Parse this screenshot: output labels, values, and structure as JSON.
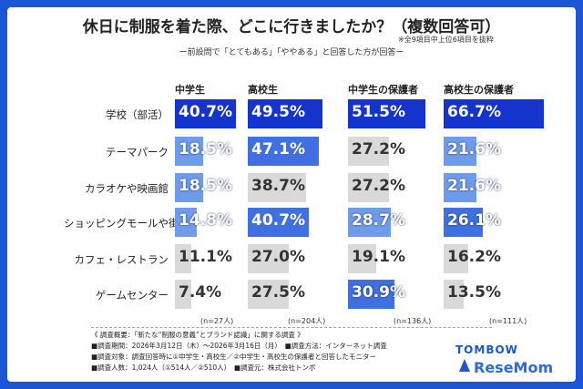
{
  "title": "休日に制服を着た際、どこに行きましたか？（複数回答可）",
  "subtitle": "ー前設問で「とてもある」「ややある」と回答した方が回答ー",
  "note": "※全9項目中上位6項目を抜粋",
  "chart_data": {
    "type": "table",
    "categories": [
      "学校（部活）",
      "テーマパーク",
      "カラオケや映画館",
      "ショッピングモールや街中",
      "カフェ・レストラン",
      "ゲームセンター"
    ],
    "series": [
      {
        "name": "中学生",
        "values": [
          40.7,
          18.5,
          18.5,
          14.8,
          11.1,
          7.4
        ],
        "n": "(n=27人)"
      },
      {
        "name": "高校生",
        "values": [
          49.5,
          47.1,
          38.7,
          40.7,
          27.0,
          27.5
        ],
        "n": "(n=204人)"
      },
      {
        "name": "中学生の保護者",
        "values": [
          51.5,
          27.2,
          27.2,
          28.7,
          19.1,
          30.9
        ],
        "n": "(n=136人)"
      },
      {
        "name": "高校生の保護者",
        "values": [
          66.7,
          21.6,
          21.6,
          26.1,
          16.2,
          13.5
        ],
        "n": "(n=111人)"
      }
    ],
    "labels": [
      [
        "40.7%",
        "49.5%",
        "51.5%",
        "66.7%"
      ],
      [
        "18.5%",
        "47.1%",
        "27.2%",
        "21.6%"
      ],
      [
        "18.5%",
        "38.7%",
        "27.2%",
        "21.6%"
      ],
      [
        "14.8%",
        "40.7%",
        "28.7%",
        "26.1%"
      ],
      [
        "11.1%",
        "27.0%",
        "19.1%",
        "16.2%"
      ],
      [
        "7.4%",
        "27.5%",
        "30.9%",
        "13.5%"
      ]
    ],
    "colors": {
      "dark": "#1434cc",
      "mid": "#3f6fe0",
      "light": "#6f9bea",
      "gray": "#d9d9d9"
    },
    "color_levels": [
      [
        "dark",
        "dark",
        "dark",
        "dark"
      ],
      [
        "light",
        "mid",
        "gray",
        "light"
      ],
      [
        "light",
        "gray",
        "gray",
        "light"
      ],
      [
        "light",
        "mid",
        "light",
        "mid"
      ],
      [
        "gray",
        "gray",
        "gray",
        "gray"
      ],
      [
        "gray",
        "gray",
        "mid",
        "gray"
      ]
    ],
    "max": 66.7
  },
  "footer": [
    "《 調査概要：「新たな“制服の意義”とブランド認識」に関する調査 》",
    "■調査期間：2026年3月12日（木）〜2026年3月16日（月）　■調査方法：インターネット調査",
    "■調査対象：調査回答時に①中学生・高校生／②中学生・高校生の保護者と回答したモニター",
    "■調査人数：1,024人（①514人／②510人）　■調査元：株式会社トンボ"
  ],
  "logo": {
    "brand": "TOMBOW",
    "site": "ReseMom"
  }
}
